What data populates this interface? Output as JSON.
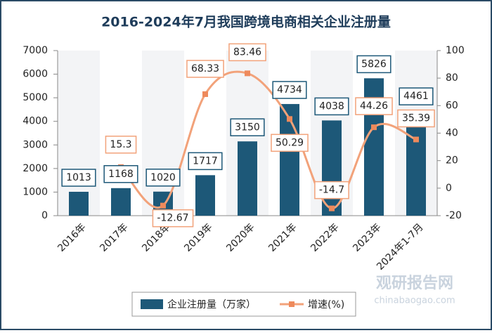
{
  "chart_data": {
    "type": "bar_line",
    "title": "2016-2024年7月我国跨境电商相关企业注册量",
    "categories": [
      "2016年",
      "2017年",
      "2018年",
      "2019年",
      "2020年",
      "2021年",
      "2022年",
      "2023年",
      "2024年1-7月"
    ],
    "series": [
      {
        "name": "企业注册量（万家）",
        "type": "bar",
        "color": "#1d5878",
        "values": [
          1013,
          1168,
          1020,
          1717,
          3150,
          4734,
          4038,
          5826,
          4461
        ]
      },
      {
        "name": "增速(%)",
        "type": "line",
        "axis": "y2",
        "color": "#f2a27a",
        "values": [
          null,
          15.3,
          -12.67,
          68.33,
          83.46,
          50.29,
          -14.7,
          44.26,
          35.39
        ]
      }
    ],
    "ylim": [
      0,
      7000
    ],
    "yticks": [
      0,
      1000,
      2000,
      3000,
      4000,
      5000,
      6000,
      7000
    ],
    "y2lim": [
      -20,
      100
    ],
    "y2ticks": [
      -20,
      0,
      20,
      40,
      60,
      80,
      100
    ],
    "watermark": "观研报告网",
    "watermark_url": "chinabaogao.com"
  }
}
